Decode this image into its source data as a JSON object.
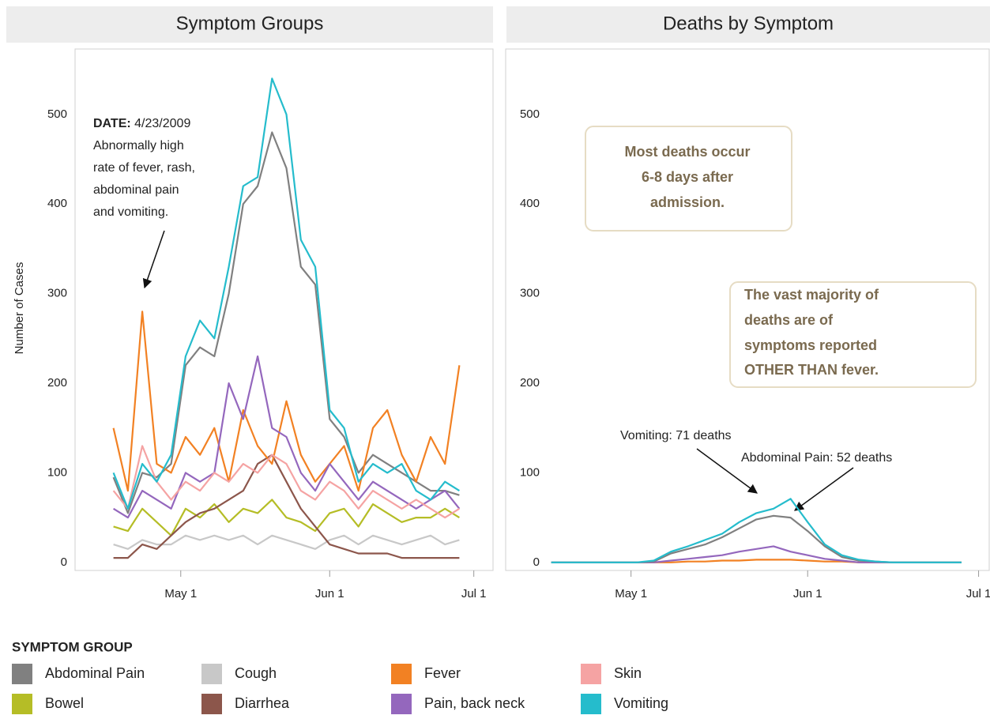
{
  "chart_data": [
    {
      "type": "line",
      "title": "Symptom Groups",
      "y_label": "Number of Cases",
      "x": [
        "Apr 17",
        "Apr 20",
        "Apr 23",
        "Apr 26",
        "Apr 29",
        "May 2",
        "May 5",
        "May 8",
        "May 11",
        "May 14",
        "May 17",
        "May 20",
        "May 23",
        "May 26",
        "May 29",
        "Jun 1",
        "Jun 4",
        "Jun 7",
        "Jun 10",
        "Jun 13",
        "Jun 16",
        "Jun 19",
        "Jun 22",
        "Jun 25",
        "Jun 28"
      ],
      "xlim": [
        "Apr 9",
        "Jul 5"
      ],
      "xticks": [
        "May 1",
        "Jun 1",
        "Jul 1"
      ],
      "ylim": [
        -9,
        573
      ],
      "yticks": [
        0,
        100,
        200,
        300,
        400,
        500
      ],
      "legend_title": "SYMPTOM GROUP",
      "annotation": {
        "label": "DATE:",
        "date": "4/23/2009",
        "lines": [
          "Abnormally high",
          "rate of fever, rash,",
          "abdominal pain",
          "and vomiting."
        ]
      },
      "series": [
        {
          "name": "Abdominal Pain",
          "color": "#808080",
          "values": [
            95,
            55,
            100,
            95,
            110,
            220,
            240,
            230,
            300,
            400,
            420,
            480,
            440,
            330,
            310,
            160,
            140,
            100,
            120,
            110,
            100,
            90,
            80,
            80,
            75
          ]
        },
        {
          "name": "Bowel",
          "color": "#b5bd26",
          "values": [
            40,
            35,
            60,
            45,
            30,
            60,
            50,
            65,
            45,
            60,
            55,
            70,
            50,
            45,
            35,
            55,
            60,
            40,
            65,
            55,
            45,
            50,
            50,
            60,
            50
          ]
        },
        {
          "name": "Cough",
          "color": "#c8c8c8",
          "values": [
            20,
            15,
            25,
            20,
            20,
            30,
            25,
            30,
            25,
            30,
            20,
            30,
            25,
            20,
            15,
            25,
            30,
            20,
            30,
            25,
            20,
            25,
            30,
            20,
            25
          ]
        },
        {
          "name": "Diarrhea",
          "color": "#8c564b",
          "values": [
            5,
            5,
            20,
            15,
            30,
            45,
            55,
            60,
            70,
            80,
            110,
            120,
            90,
            60,
            40,
            20,
            15,
            10,
            10,
            10,
            5,
            5,
            5,
            5,
            5
          ]
        },
        {
          "name": "Fever",
          "color": "#f28123",
          "values": [
            150,
            80,
            280,
            110,
            100,
            140,
            120,
            150,
            90,
            170,
            130,
            110,
            180,
            120,
            90,
            110,
            130,
            80,
            150,
            170,
            120,
            90,
            140,
            110,
            220
          ]
        },
        {
          "name": "Pain, back neck",
          "color": "#9467bd",
          "values": [
            60,
            50,
            80,
            70,
            60,
            100,
            90,
            100,
            200,
            160,
            230,
            150,
            140,
            100,
            80,
            110,
            90,
            70,
            90,
            80,
            70,
            60,
            70,
            80,
            60
          ]
        },
        {
          "name": "Skin",
          "color": "#f5a3a3",
          "values": [
            80,
            60,
            130,
            90,
            70,
            90,
            80,
            100,
            90,
            110,
            100,
            120,
            110,
            80,
            70,
            90,
            80,
            60,
            80,
            70,
            60,
            70,
            60,
            50,
            60
          ]
        },
        {
          "name": "Vomiting",
          "color": "#25bccc",
          "values": [
            100,
            60,
            110,
            90,
            120,
            230,
            270,
            250,
            330,
            420,
            430,
            540,
            500,
            360,
            330,
            170,
            150,
            90,
            110,
            100,
            110,
            80,
            70,
            90,
            80
          ]
        }
      ]
    },
    {
      "type": "line",
      "title": "Deaths by Symptom",
      "x": [
        "Apr 17",
        "Apr 20",
        "Apr 23",
        "Apr 26",
        "Apr 29",
        "May 2",
        "May 5",
        "May 8",
        "May 11",
        "May 14",
        "May 17",
        "May 20",
        "May 23",
        "May 26",
        "May 29",
        "Jun 1",
        "Jun 4",
        "Jun 7",
        "Jun 10",
        "Jun 13",
        "Jun 16",
        "Jun 19",
        "Jun 22",
        "Jun 25",
        "Jun 28"
      ],
      "xlim": [
        "Apr 9",
        "Jul 3"
      ],
      "xticks": [
        "May 1",
        "Jun 1",
        "Jul 1"
      ],
      "ylim": [
        -9,
        573
      ],
      "yticks": [
        0,
        100,
        200,
        300,
        400,
        500
      ],
      "boxes": [
        {
          "lines": [
            "Most deaths occur",
            "6-8 days after",
            "admission."
          ]
        },
        {
          "lines": [
            "The vast majority of",
            "deaths are of",
            "symptoms reported",
            "OTHER THAN fever."
          ]
        }
      ],
      "callouts": [
        "Vomiting: 71 deaths",
        "Abdominal Pain: 52 deaths"
      ],
      "series": [
        {
          "name": "Fever",
          "color": "#f28123",
          "values": [
            0,
            0,
            0,
            0,
            0,
            0,
            0,
            0,
            1,
            1,
            2,
            2,
            3,
            3,
            3,
            2,
            1,
            1,
            0,
            0,
            0,
            0,
            0,
            0,
            0
          ]
        },
        {
          "name": "Pain, back neck",
          "color": "#9467bd",
          "values": [
            0,
            0,
            0,
            0,
            0,
            0,
            0,
            2,
            4,
            6,
            8,
            12,
            15,
            18,
            12,
            8,
            4,
            2,
            0,
            0,
            0,
            0,
            0,
            0,
            0
          ]
        },
        {
          "name": "Abdominal Pain",
          "color": "#808080",
          "values": [
            0,
            0,
            0,
            0,
            0,
            0,
            1,
            10,
            15,
            20,
            28,
            38,
            48,
            52,
            50,
            35,
            18,
            6,
            2,
            1,
            0,
            0,
            0,
            0,
            0
          ]
        },
        {
          "name": "Vomiting",
          "color": "#25bccc",
          "values": [
            0,
            0,
            0,
            0,
            0,
            0,
            2,
            12,
            18,
            25,
            32,
            45,
            55,
            60,
            71,
            45,
            20,
            8,
            3,
            1,
            0,
            0,
            0,
            0,
            0
          ]
        }
      ]
    }
  ]
}
